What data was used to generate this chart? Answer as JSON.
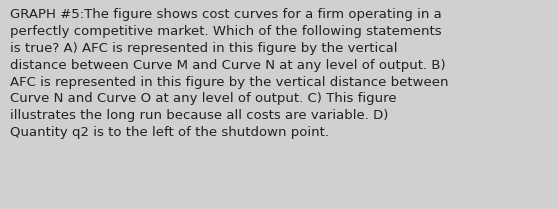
{
  "lines": [
    "GRAPH #5:The figure shows cost curves for a firm operating in a",
    "perfectly competitive market. Which of the following statements",
    "is true? A) AFC is represented in this figure by the vertical",
    "distance between Curve M and Curve N at any level of output. B)",
    "AFC is represented in this figure by the vertical distance between",
    "Curve N and Curve O at any level of output. C) This figure",
    "illustrates the long run because all costs are variable. D)",
    "Quantity q2 is to the left of the shutdown point."
  ],
  "background_color": "#d0d0d0",
  "text_color": "#222222",
  "font_size": 9.5,
  "fig_width": 5.58,
  "fig_height": 2.09,
  "dpi": 100
}
